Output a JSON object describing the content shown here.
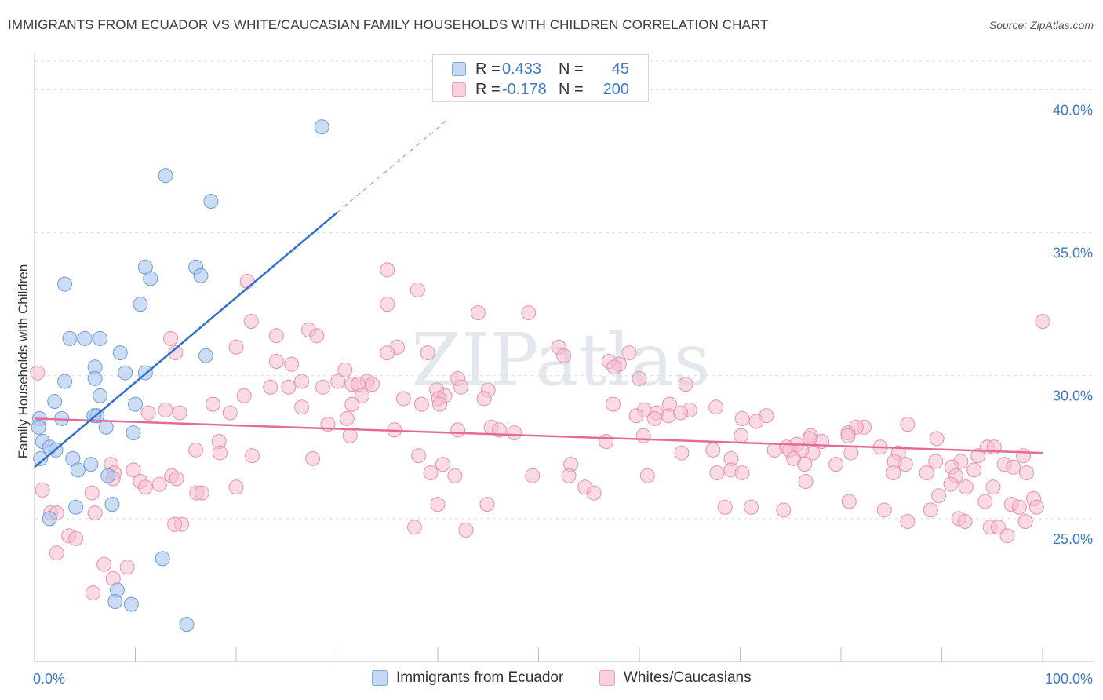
{
  "title": "IMMIGRANTS FROM ECUADOR VS WHITE/CAUCASIAN FAMILY HOUSEHOLDS WITH CHILDREN CORRELATION CHART",
  "source": "Source: ZipAtlas.com",
  "watermark": "ZIPatlas",
  "legend": {
    "r_label": "R =",
    "n_label": "N =",
    "series1": {
      "r": "0.433",
      "n": "45"
    },
    "series2": {
      "r": "-0.178",
      "n": "200"
    }
  },
  "colors": {
    "series1_fill": "#a9c6ee",
    "series1_stroke": "#6f9ad6",
    "series1_line": "#2e6fcf",
    "series2_fill": "#f6bcd0",
    "series2_stroke": "#e690b0",
    "series2_line": "#e46b97",
    "tick_text": "#3f78c9"
  },
  "chart_data": {
    "type": "scatter",
    "xlabel": "",
    "ylabel": "Family Households with Children",
    "xlim": [
      0,
      100
    ],
    "ylim": [
      20,
      41
    ],
    "x_tick_labels": [
      {
        "value": 0,
        "label": "0.0%"
      },
      {
        "value": 100,
        "label": "100.0%"
      }
    ],
    "y_ticks": [
      {
        "value": 25,
        "label": "25.0%"
      },
      {
        "value": 30,
        "label": "30.0%"
      },
      {
        "value": 35,
        "label": "35.0%"
      },
      {
        "value": 40,
        "label": "40.0%"
      }
    ],
    "grid": true,
    "series": [
      {
        "name": "Immigrants from Ecuador",
        "trend": {
          "x0": 0,
          "y0": 26.8,
          "x1": 30,
          "y1": 35.7,
          "dash_to_x": 41
        },
        "points": [
          [
            28.5,
            38.7
          ],
          [
            13,
            37
          ],
          [
            17.5,
            36.1
          ],
          [
            11,
            33.8
          ],
          [
            16,
            33.8
          ],
          [
            3,
            33.2
          ],
          [
            11.5,
            33.4
          ],
          [
            16.5,
            33.5
          ],
          [
            10.5,
            32.5
          ],
          [
            3.5,
            31.3
          ],
          [
            5,
            31.3
          ],
          [
            6.5,
            31.3
          ],
          [
            8.5,
            30.8
          ],
          [
            17,
            30.7
          ],
          [
            6,
            30.3
          ],
          [
            9,
            30.1
          ],
          [
            11,
            30.1
          ],
          [
            3,
            29.8
          ],
          [
            6,
            29.9
          ],
          [
            2,
            29.1
          ],
          [
            6.5,
            29.3
          ],
          [
            10,
            29
          ],
          [
            6.2,
            28.6
          ],
          [
            5.9,
            28.6
          ],
          [
            0.5,
            28.5
          ],
          [
            2.7,
            28.5
          ],
          [
            0.4,
            28.2
          ],
          [
            7.1,
            28.2
          ],
          [
            9.8,
            28
          ],
          [
            0.8,
            27.7
          ],
          [
            1.5,
            27.5
          ],
          [
            2.1,
            27.4
          ],
          [
            0.6,
            27.1
          ],
          [
            3.8,
            27.1
          ],
          [
            5.6,
            26.9
          ],
          [
            4.3,
            26.7
          ],
          [
            7.3,
            26.5
          ],
          [
            7.7,
            25.5
          ],
          [
            4.1,
            25.4
          ],
          [
            1.5,
            25
          ],
          [
            12.7,
            23.6
          ],
          [
            8.2,
            22.5
          ],
          [
            8,
            22.1
          ],
          [
            9.6,
            22
          ],
          [
            15.1,
            21.3
          ]
        ]
      },
      {
        "name": "Whites/Caucasians",
        "trend": {
          "x0": 0,
          "y0": 28.5,
          "x1": 100,
          "y1": 27.3
        },
        "points": [
          [
            35,
            33.7
          ],
          [
            21.1,
            33.3
          ],
          [
            38,
            33
          ],
          [
            44,
            32.2
          ],
          [
            49,
            32.2
          ],
          [
            35,
            32.5
          ],
          [
            21.5,
            31.9
          ],
          [
            100,
            31.9
          ],
          [
            27.2,
            31.6
          ],
          [
            28,
            31.4
          ],
          [
            24,
            31.4
          ],
          [
            13.5,
            31.3
          ],
          [
            52,
            31
          ],
          [
            57,
            30.5
          ],
          [
            59,
            30.8
          ],
          [
            20,
            31
          ],
          [
            36,
            31
          ],
          [
            39,
            30.8
          ],
          [
            35,
            30.8
          ],
          [
            52.5,
            30.7
          ],
          [
            14,
            30.8
          ],
          [
            24,
            30.5
          ],
          [
            25.5,
            30.4
          ],
          [
            58,
            30.4
          ],
          [
            57.5,
            30.3
          ],
          [
            30.8,
            30.2
          ],
          [
            0.3,
            30.1
          ],
          [
            60,
            29.9
          ],
          [
            42,
            29.9
          ],
          [
            30.1,
            29.8
          ],
          [
            33,
            29.8
          ],
          [
            26.5,
            29.8
          ],
          [
            31.5,
            29.7
          ],
          [
            32.1,
            29.7
          ],
          [
            33.5,
            29.7
          ],
          [
            23.4,
            29.6
          ],
          [
            25.2,
            29.6
          ],
          [
            64.6,
            29.7
          ],
          [
            28.6,
            29.6
          ],
          [
            45,
            29.5
          ],
          [
            39.9,
            29.5
          ],
          [
            42.3,
            29.6
          ],
          [
            32.5,
            29.3
          ],
          [
            20.8,
            29.3
          ],
          [
            40.7,
            29.3
          ],
          [
            40.1,
            29.2
          ],
          [
            44.6,
            29.2
          ],
          [
            40.2,
            29
          ],
          [
            36.6,
            29.2
          ],
          [
            17.7,
            29
          ],
          [
            38.4,
            29
          ],
          [
            31.5,
            29
          ],
          [
            26.5,
            28.9
          ],
          [
            57.4,
            29
          ],
          [
            63,
            29
          ],
          [
            60.5,
            28.8
          ],
          [
            61.7,
            28.7
          ],
          [
            65,
            28.8
          ],
          [
            59.7,
            28.6
          ],
          [
            67.6,
            28.9
          ],
          [
            14.4,
            28.7
          ],
          [
            11.3,
            28.7
          ],
          [
            13,
            28.8
          ],
          [
            62.9,
            28.6
          ],
          [
            64.1,
            28.7
          ],
          [
            19.4,
            28.7
          ],
          [
            31,
            28.5
          ],
          [
            61.5,
            28.5
          ],
          [
            70.2,
            28.5
          ],
          [
            72.6,
            28.6
          ],
          [
            29.1,
            28.3
          ],
          [
            71.6,
            28.4
          ],
          [
            82.3,
            28.2
          ],
          [
            42,
            28.1
          ],
          [
            35.7,
            28.1
          ],
          [
            45.3,
            28.2
          ],
          [
            81.5,
            28.2
          ],
          [
            46.1,
            28.1
          ],
          [
            47.6,
            28
          ],
          [
            31.3,
            27.9
          ],
          [
            86.6,
            28.3
          ],
          [
            77,
            27.9
          ],
          [
            80.7,
            28
          ],
          [
            80.7,
            27.9
          ],
          [
            60.4,
            27.9
          ],
          [
            70.1,
            27.9
          ],
          [
            78.1,
            27.7
          ],
          [
            76.9,
            27.8
          ],
          [
            18.3,
            27.7
          ],
          [
            56.7,
            27.7
          ],
          [
            75.6,
            27.6
          ],
          [
            89.5,
            27.8
          ],
          [
            73.4,
            27.4
          ],
          [
            74.6,
            27.5
          ],
          [
            83.9,
            27.5
          ],
          [
            74.9,
            27.4
          ],
          [
            67.3,
            27.4
          ],
          [
            77.2,
            27.3
          ],
          [
            81,
            27.3
          ],
          [
            94.5,
            27.5
          ],
          [
            76.1,
            27.4
          ],
          [
            64.2,
            27.3
          ],
          [
            95.2,
            27.5
          ],
          [
            16,
            27.4
          ],
          [
            18.4,
            27.3
          ],
          [
            21.6,
            27.2
          ],
          [
            69.1,
            27.1
          ],
          [
            27.6,
            27.1
          ],
          [
            85.7,
            27.3
          ],
          [
            38.1,
            27.2
          ],
          [
            98.1,
            27.2
          ],
          [
            93.6,
            27.2
          ],
          [
            86.4,
            26.9
          ],
          [
            75.3,
            27.1
          ],
          [
            91.9,
            27
          ],
          [
            96.2,
            26.9
          ],
          [
            97.1,
            26.8
          ],
          [
            76.4,
            26.9
          ],
          [
            79.5,
            26.9
          ],
          [
            88.5,
            26.6
          ],
          [
            85.3,
            27
          ],
          [
            53.2,
            26.9
          ],
          [
            89.4,
            27
          ],
          [
            91,
            26.8
          ],
          [
            93.2,
            26.7
          ],
          [
            7.6,
            26.9
          ],
          [
            9.8,
            26.7
          ],
          [
            7.9,
            26.6
          ],
          [
            67.7,
            26.6
          ],
          [
            69.1,
            26.7
          ],
          [
            98.4,
            26.6
          ],
          [
            70.2,
            26.6
          ],
          [
            60.8,
            26.5
          ],
          [
            76.5,
            26.3
          ],
          [
            49.4,
            26.5
          ],
          [
            91.4,
            26.5
          ],
          [
            85.2,
            26.6
          ],
          [
            7.8,
            26.4
          ],
          [
            13.6,
            26.5
          ],
          [
            14.1,
            26.4
          ],
          [
            90.9,
            26.2
          ],
          [
            92.4,
            26.1
          ],
          [
            95.1,
            26.1
          ],
          [
            16.1,
            25.9
          ],
          [
            16.6,
            25.9
          ],
          [
            20,
            26.1
          ],
          [
            12.4,
            26.2
          ],
          [
            0.8,
            26
          ],
          [
            89.7,
            25.8
          ],
          [
            94.3,
            25.6
          ],
          [
            96.9,
            25.5
          ],
          [
            40,
            25.5
          ],
          [
            44.9,
            25.5
          ],
          [
            71.1,
            25.4
          ],
          [
            68.5,
            25.4
          ],
          [
            80.8,
            25.6
          ],
          [
            84.3,
            25.3
          ],
          [
            74.3,
            25.3
          ],
          [
            88.9,
            25.3
          ],
          [
            97.7,
            25.4
          ],
          [
            99.1,
            25.7
          ],
          [
            99.4,
            25.4
          ],
          [
            91.7,
            25
          ],
          [
            92.3,
            24.9
          ],
          [
            98.3,
            24.9
          ],
          [
            94.8,
            24.7
          ],
          [
            95.6,
            24.7
          ],
          [
            96.5,
            24.4
          ],
          [
            86.6,
            24.9
          ],
          [
            1.6,
            25.2
          ],
          [
            2.2,
            25.2
          ],
          [
            6,
            25.2
          ],
          [
            14.6,
            24.8
          ],
          [
            3.4,
            24.4
          ],
          [
            4.1,
            24.3
          ],
          [
            13.9,
            24.8
          ],
          [
            2.2,
            23.8
          ],
          [
            6.9,
            23.4
          ],
          [
            9.2,
            23.3
          ],
          [
            7.8,
            22.9
          ],
          [
            5.8,
            22.4
          ],
          [
            37.7,
            24.7
          ],
          [
            42.8,
            24.6
          ],
          [
            41.7,
            26.5
          ],
          [
            39.3,
            26.6
          ],
          [
            40.5,
            26.9
          ],
          [
            53,
            26.5
          ],
          [
            54.6,
            26.1
          ],
          [
            55.5,
            25.9
          ],
          [
            5.7,
            25.9
          ],
          [
            10.5,
            26.3
          ],
          [
            11,
            26.1
          ]
        ]
      }
    ]
  }
}
